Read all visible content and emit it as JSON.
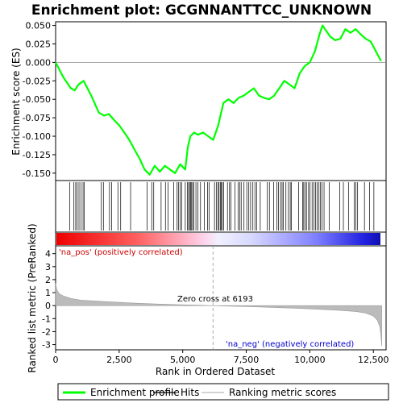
{
  "chart_data": {
    "type": "line",
    "title": "Enrichment plot: GCGNNANTTCC_UNKNOWN",
    "ylabel_top": "Enrichment score (ES)",
    "ylabel_bottom": "Ranked list metric (PreRanked)",
    "xlabel": "Rank in Ordered Dataset",
    "x_range": [
      0,
      13000
    ],
    "es_ylim": [
      -0.16,
      0.055
    ],
    "metric_ylim": [
      -3.4,
      4.6
    ],
    "x_ticks": [
      0,
      2500,
      5000,
      7500,
      10000,
      12500
    ],
    "x_tick_labels": [
      "0",
      "2,500",
      "5,000",
      "7,500",
      "10,000",
      "12,500"
    ],
    "es_ticks": [
      0.05,
      0.025,
      0.0,
      -0.025,
      -0.05,
      -0.075,
      -0.1,
      -0.125,
      -0.15
    ],
    "es_tick_labels": [
      "0.050",
      "0.025",
      "0.000",
      "-0.025",
      "-0.050",
      "-0.075",
      "-0.100",
      "-0.125",
      "-0.150"
    ],
    "metric_ticks": [
      4,
      3,
      2,
      1,
      0,
      -1,
      -2,
      -3
    ],
    "metric_tick_labels": [
      "4",
      "3",
      "2",
      "1",
      "0",
      "-1",
      "-2",
      "-3"
    ],
    "enrichment_profile": {
      "name": "Enrichment profile",
      "color": "#00ff00",
      "x": [
        0,
        300,
        600,
        750,
        900,
        1100,
        1400,
        1700,
        1900,
        2100,
        2300,
        2500,
        2700,
        2900,
        3100,
        3300,
        3500,
        3700,
        3900,
        4100,
        4300,
        4500,
        4700,
        4900,
        5100,
        5200,
        5300,
        5450,
        5600,
        5800,
        6000,
        6200,
        6400,
        6500,
        6600,
        6800,
        7000,
        7200,
        7400,
        7600,
        7800,
        8000,
        8200,
        8400,
        8600,
        8800,
        9000,
        9200,
        9400,
        9600,
        9800,
        10000,
        10200,
        10400,
        10500,
        10600,
        10800,
        11000,
        11200,
        11400,
        11600,
        11800,
        12000,
        12200,
        12400,
        12600,
        12800
      ],
      "y": [
        0.0,
        -0.02,
        -0.035,
        -0.038,
        -0.03,
        -0.025,
        -0.045,
        -0.068,
        -0.072,
        -0.07,
        -0.078,
        -0.085,
        -0.095,
        -0.105,
        -0.118,
        -0.13,
        -0.145,
        -0.152,
        -0.14,
        -0.148,
        -0.14,
        -0.145,
        -0.15,
        -0.138,
        -0.145,
        -0.115,
        -0.1,
        -0.095,
        -0.098,
        -0.095,
        -0.1,
        -0.105,
        -0.085,
        -0.07,
        -0.055,
        -0.05,
        -0.055,
        -0.048,
        -0.045,
        -0.04,
        -0.035,
        -0.045,
        -0.048,
        -0.05,
        -0.045,
        -0.035,
        -0.025,
        -0.03,
        -0.035,
        -0.015,
        -0.005,
        0.0,
        0.015,
        0.04,
        0.05,
        0.045,
        0.035,
        0.03,
        0.032,
        0.045,
        0.04,
        0.045,
        0.038,
        0.032,
        0.028,
        0.015,
        0.002
      ]
    },
    "hits": {
      "name": "Hits",
      "color": "#000000",
      "x": [
        560,
        720,
        790,
        850,
        920,
        1000,
        1080,
        1130,
        1800,
        1880,
        2120,
        2200,
        2450,
        2560,
        2950,
        3600,
        3780,
        3860,
        4150,
        4320,
        4420,
        4650,
        4780,
        4830,
        4900,
        4960,
        5100,
        5180,
        5230,
        5270,
        5310,
        5350,
        5390,
        5440,
        5520,
        5600,
        5700,
        5850,
        5980,
        6040,
        6250,
        6330,
        6390,
        6430,
        6480,
        6520,
        6560,
        6610,
        6760,
        6840,
        6900,
        7060,
        7180,
        7240,
        7300,
        7410,
        7520,
        7600,
        7670,
        7760,
        7840,
        7910,
        8050,
        8330,
        8410,
        8580,
        8700,
        8770,
        8850,
        8910,
        8960,
        9060,
        9160,
        9230,
        9270,
        9560,
        9720,
        9760,
        9810,
        9870,
        9950,
        10010,
        10090,
        10160,
        10230,
        10290,
        10360,
        10420,
        10480,
        10560,
        10760,
        11180,
        11320,
        11520,
        11750,
        11810,
        11880,
        12150,
        12350,
        12520
      ]
    },
    "ranking_metric": {
      "name": "Ranking metric scores",
      "color": "#bbbbbb",
      "x": [
        0,
        50,
        150,
        300,
        600,
        1000,
        2000,
        3000,
        4000,
        5000,
        6193,
        7000,
        8000,
        9000,
        10000,
        11000,
        11800,
        12200,
        12500,
        12650,
        12750,
        12800,
        12830
      ],
      "y": [
        1.7,
        1.2,
        0.9,
        0.75,
        0.55,
        0.42,
        0.3,
        0.2,
        0.12,
        0.06,
        0.0,
        -0.05,
        -0.1,
        -0.17,
        -0.25,
        -0.34,
        -0.45,
        -0.58,
        -0.8,
        -1.1,
        -1.6,
        -2.3,
        -3.1
      ]
    },
    "zero_cross": 6193,
    "annotations": {
      "pos": "'na_pos' (positively correlated)",
      "neg": "'na_neg' (negatively correlated)",
      "zero": "Zero cross at 6193"
    },
    "legend": [
      {
        "label": "Enrichment profile",
        "color": "#00ff00",
        "kind": "line-green"
      },
      {
        "label": "Hits",
        "color": "#000000",
        "kind": "line-black"
      },
      {
        "label": "Ranking metric scores",
        "color": "#bbbbbb",
        "kind": "line-gray"
      }
    ],
    "legend_placement": "bottom",
    "grid": false,
    "colors": {
      "profile": "#00ff00",
      "bar_positive": "#ff0000",
      "bar_negative": "#0000ff",
      "zero_line": "#aaaaaa"
    }
  }
}
